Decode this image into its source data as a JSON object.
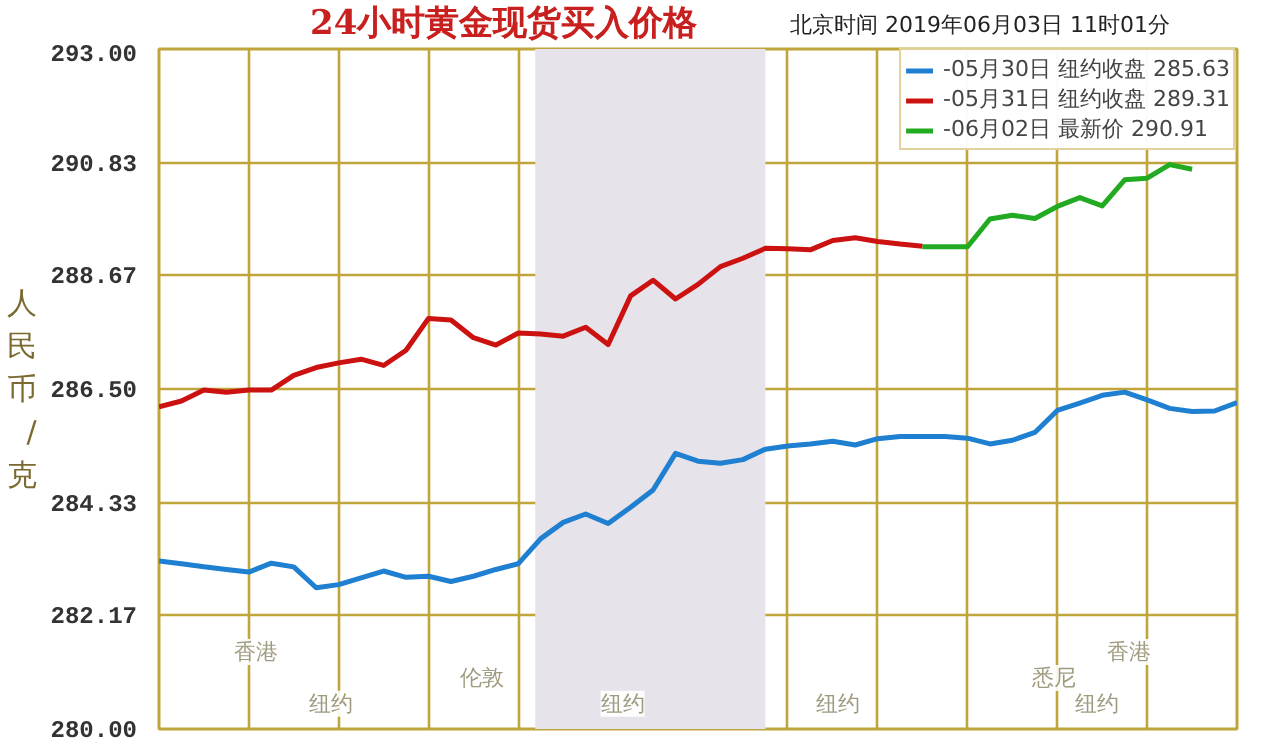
{
  "chart_data": {
    "type": "line",
    "title": "24小时黄金现货买入价格",
    "subtitle": "北京时间  2019年06月03日 11时01分",
    "ylabel": "人民币/克",
    "categories": [
      null,
      null,
      null,
      null,
      null,
      null,
      null,
      null,
      null,
      null,
      null,
      null,
      null,
      null,
      null,
      null,
      null,
      null,
      null,
      null,
      null,
      null,
      null,
      null,
      null,
      null,
      null,
      null,
      null,
      null,
      null,
      null,
      null,
      null,
      null,
      null,
      null,
      null,
      null,
      null,
      null,
      null,
      null,
      null,
      null,
      null,
      null,
      null,
      null
    ],
    "ylim": [
      280,
      293
    ],
    "yticks": [
      {
        "value": 280,
        "label": "280.00"
      },
      {
        "value": 282.17,
        "label": "282.17"
      },
      {
        "value": 284.33,
        "label": "284.33"
      },
      {
        "value": 286.5,
        "label": "286.50"
      },
      {
        "value": 288.67,
        "label": "288.67"
      },
      {
        "value": 290.83,
        "label": "290.83"
      },
      {
        "value": 293,
        "label": "293.00"
      }
    ],
    "tick_labels": "y",
    "grid": true,
    "legend": "top right",
    "marker": "none",
    "line_style": "solid",
    "series": [
      {
        "name": "-05月30日 纽约收盘 285.63",
        "color": "#1f7fd0",
        "values": [
          283.21,
          283.16,
          283.1,
          283.05,
          283.0,
          283.17,
          283.1,
          282.7,
          282.76,
          282.89,
          283.02,
          282.9,
          282.92,
          282.82,
          282.92,
          283.05,
          283.16,
          283.64,
          283.95,
          284.11,
          283.93,
          284.24,
          284.57,
          285.27,
          285.12,
          285.08,
          285.15,
          285.35,
          285.41,
          285.45,
          285.5,
          285.43,
          285.55,
          285.59,
          285.59,
          285.59,
          285.56,
          285.45,
          285.52,
          285.67,
          286.09,
          286.23,
          286.38,
          286.44,
          286.29,
          286.13,
          286.07,
          286.08,
          286.24
        ]
      },
      {
        "name": "-05月31日 纽约收盘 289.31",
        "color": "#cc1111",
        "values": [
          286.16,
          286.27,
          286.48,
          286.44,
          286.48,
          286.48,
          286.76,
          286.91,
          287.0,
          287.07,
          286.95,
          287.24,
          287.85,
          287.82,
          287.48,
          287.34,
          287.57,
          287.55,
          287.51,
          287.68,
          287.35,
          288.28,
          288.58,
          288.22,
          288.5,
          288.84,
          289.0,
          289.19,
          289.18,
          289.16,
          289.34,
          289.39,
          289.32,
          289.27,
          289.23,
          null,
          null,
          null,
          null,
          null,
          null,
          null,
          null,
          null,
          null,
          null,
          null,
          null,
          null
        ]
      },
      {
        "name": "-06月02日 最新价 290.91",
        "color": "#22aa22",
        "values": [
          null,
          null,
          null,
          null,
          null,
          null,
          null,
          null,
          null,
          null,
          null,
          null,
          null,
          null,
          null,
          null,
          null,
          null,
          null,
          null,
          null,
          null,
          null,
          null,
          null,
          null,
          null,
          null,
          null,
          null,
          null,
          null,
          null,
          null,
          289.22,
          289.22,
          289.22,
          289.75,
          289.82,
          289.76,
          289.99,
          290.16,
          290.0,
          290.5,
          290.53,
          290.79,
          290.7,
          null,
          null
        ]
      }
    ],
    "annotations": [
      "香港",
      "伦敦",
      "纽约",
      "纽约",
      "纽约",
      "悉尼",
      "香港",
      "纽约"
    ]
  }
}
